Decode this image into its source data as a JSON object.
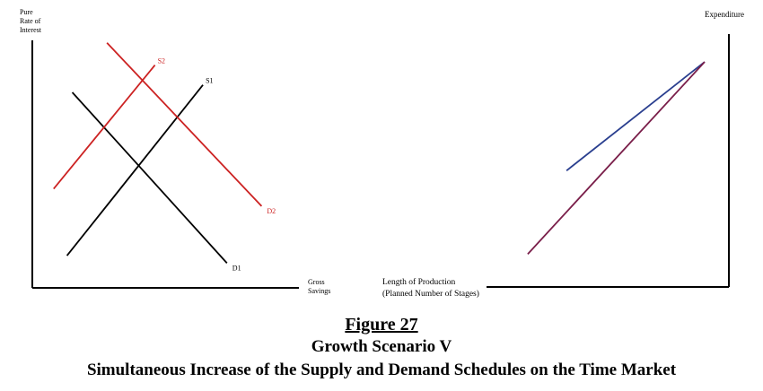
{
  "figure": {
    "number": "Figure 27",
    "title": "Growth Scenario V",
    "subtitle": "Simultaneous Increase of the Supply and Demand Schedules on the Time Market"
  },
  "colors": {
    "axis": "#000000",
    "original": "#000000",
    "shifted": "#cc2222",
    "blue": "#2a3f8f",
    "purple": "#7a1f4a"
  },
  "chart_data": [
    {
      "type": "line",
      "title": "",
      "xlabel": "Gross\nSavings",
      "ylabel": "Pure\nRate of\nInterest",
      "xlim": [
        0,
        10
      ],
      "ylim": [
        0,
        10
      ],
      "grid": false,
      "series": [
        {
          "name": "S1",
          "x": [
            1.3,
            6.4
          ],
          "y": [
            1.3,
            8.2
          ],
          "color": "#000000"
        },
        {
          "name": "D1",
          "x": [
            1.5,
            7.3
          ],
          "y": [
            7.9,
            1.0
          ],
          "color": "#000000"
        },
        {
          "name": "S2",
          "x": [
            0.8,
            4.6
          ],
          "y": [
            4.0,
            9.0
          ],
          "color": "#cc2222"
        },
        {
          "name": "D2",
          "x": [
            2.8,
            8.6
          ],
          "y": [
            9.9,
            3.3
          ],
          "color": "#cc2222"
        }
      ]
    },
    {
      "type": "line",
      "title": "",
      "xlabel": "Length of Production\n(Planned Number of Stages)",
      "ylabel": "Expenditure",
      "xlim": [
        0,
        10
      ],
      "ylim": [
        0,
        10
      ],
      "grid": false,
      "series": [
        {
          "x": [
            3.3,
            9.0
          ],
          "y": [
            4.6,
            8.9
          ],
          "color": "#2a3f8f"
        },
        {
          "x": [
            1.7,
            9.0
          ],
          "y": [
            1.3,
            8.9
          ],
          "color": "#7a1f4a"
        }
      ]
    }
  ]
}
